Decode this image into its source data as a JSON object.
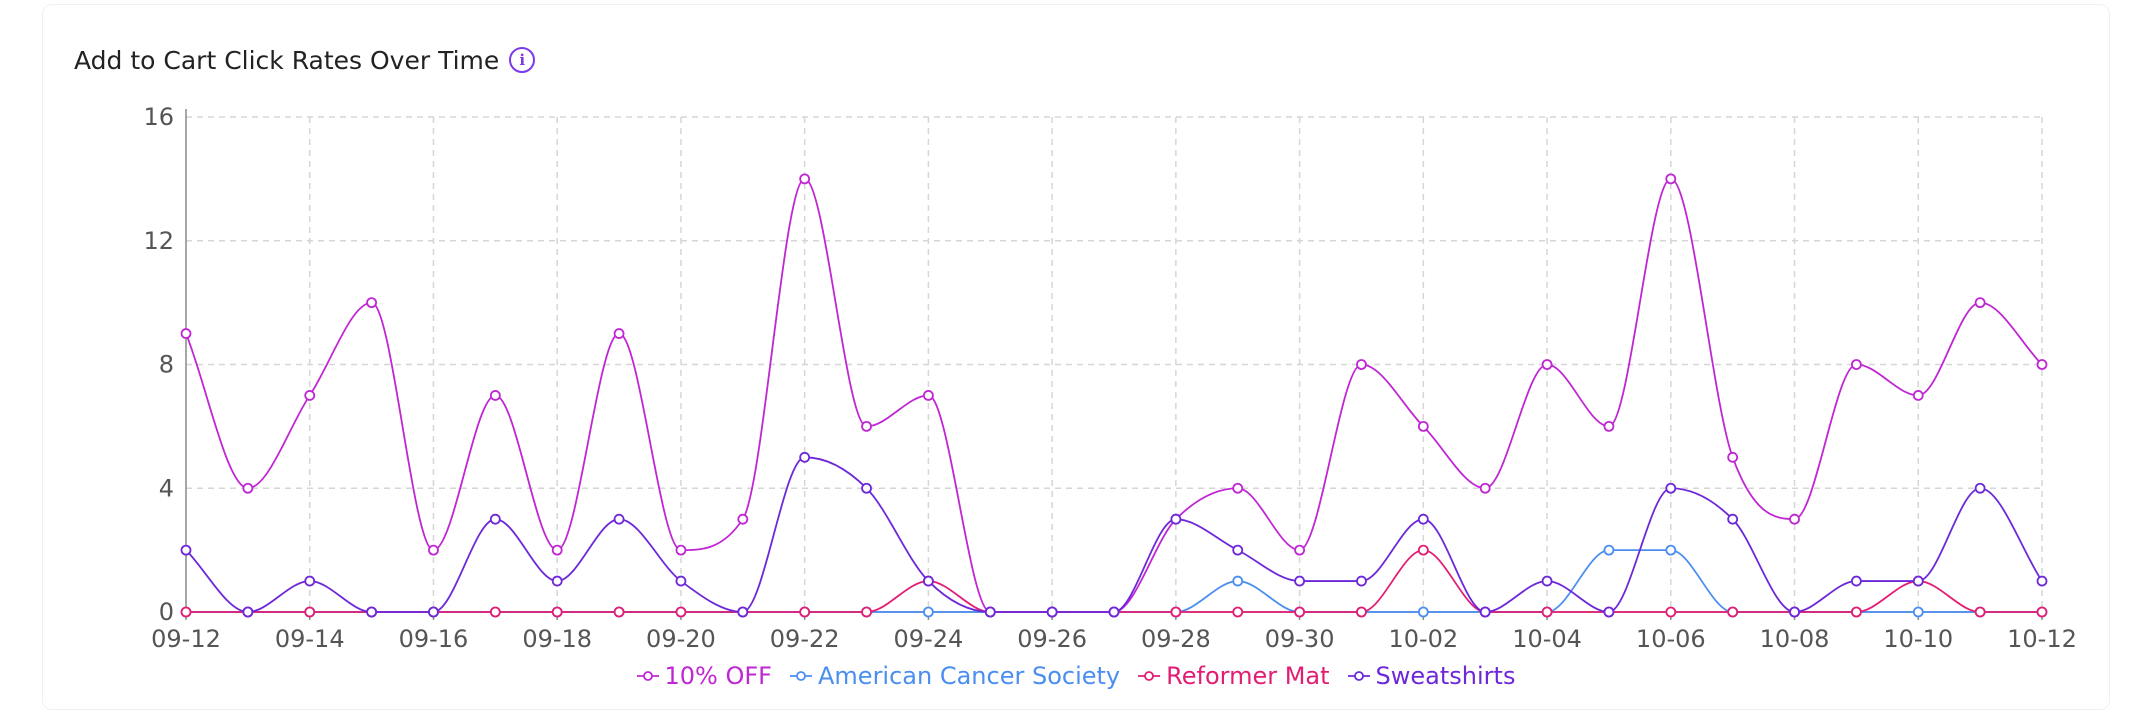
{
  "header": {
    "title": "Add to Cart Click Rates Over Time",
    "info_icon": "info-icon"
  },
  "chart_data": {
    "type": "line",
    "title": "Add to Cart Click Rates Over Time",
    "xlabel": "",
    "ylabel": "",
    "ylim": [
      0,
      16
    ],
    "yticks": [
      "0",
      "4",
      "8",
      "12",
      "16"
    ],
    "grid": true,
    "legend_position": "bottom-center",
    "x": [
      "09-12",
      "09-13",
      "09-14",
      "09-15",
      "09-16",
      "09-17",
      "09-18",
      "09-19",
      "09-20",
      "09-21",
      "09-22",
      "09-23",
      "09-24",
      "09-25",
      "09-26",
      "09-27",
      "09-28",
      "09-29",
      "09-30",
      "10-01",
      "10-02",
      "10-03",
      "10-04",
      "10-05",
      "10-06",
      "10-07",
      "10-08",
      "10-09",
      "10-10",
      "10-11",
      "10-12"
    ],
    "xticks": [
      "09-12",
      "09-14",
      "09-16",
      "09-18",
      "09-20",
      "09-22",
      "09-24",
      "09-26",
      "09-28",
      "09-30",
      "10-02",
      "10-04",
      "10-06",
      "10-08",
      "10-10",
      "10-12"
    ],
    "series": [
      {
        "name": "10% OFF",
        "color": "#c026d3",
        "values": [
          9,
          4,
          7,
          10,
          2,
          7,
          2,
          9,
          2,
          3,
          14,
          6,
          7,
          0,
          0,
          0,
          3,
          4,
          2,
          8,
          6,
          4,
          8,
          6,
          14,
          5,
          3,
          8,
          7,
          10,
          8
        ]
      },
      {
        "name": "American Cancer Society",
        "color": "#4a8ef0",
        "values": [
          0,
          0,
          0,
          0,
          0,
          0,
          0,
          0,
          0,
          0,
          0,
          0,
          0,
          0,
          0,
          0,
          0,
          1,
          0,
          0,
          0,
          0,
          0,
          2,
          2,
          0,
          0,
          0,
          0,
          0,
          0
        ]
      },
      {
        "name": "Reformer Mat",
        "color": "#e11d74",
        "values": [
          0,
          0,
          0,
          0,
          0,
          0,
          0,
          0,
          0,
          0,
          0,
          0,
          1,
          0,
          0,
          0,
          0,
          0,
          0,
          0,
          2,
          0,
          0,
          0,
          0,
          0,
          0,
          0,
          1,
          0,
          0
        ]
      },
      {
        "name": "Sweatshirts",
        "color": "#6d28d9",
        "values": [
          2,
          0,
          1,
          0,
          0,
          3,
          1,
          3,
          1,
          0,
          5,
          4,
          1,
          0,
          0,
          0,
          3,
          2,
          1,
          1,
          3,
          0,
          1,
          0,
          4,
          3,
          0,
          1,
          1,
          4,
          1
        ]
      }
    ]
  }
}
